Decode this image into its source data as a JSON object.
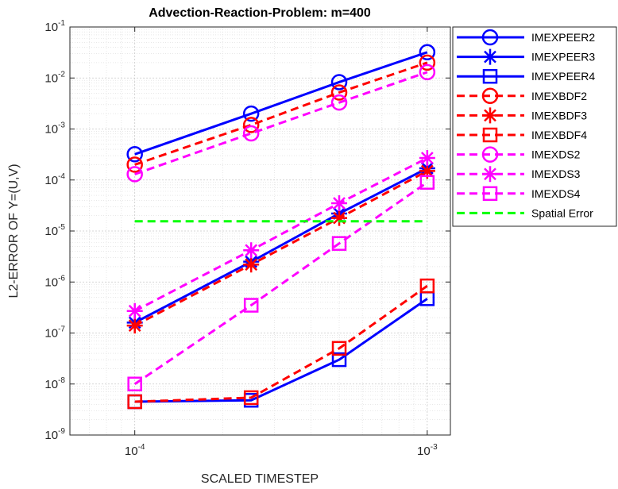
{
  "chart_data": {
    "type": "line",
    "title": "Advection-Reaction-Problem: m=400",
    "xlabel": "SCALED TIMESTEP",
    "ylabel": "L2-ERROR OF Y=(U,V)",
    "xscale": "log",
    "yscale": "log",
    "xlim": [
      6e-05,
      0.0012
    ],
    "ylim": [
      1e-09,
      0.1
    ],
    "grid": "major and minor",
    "legend_position": "outside top-right",
    "x_ticks": [
      {
        "value": 0.0001,
        "base": "10",
        "exp": "-4"
      },
      {
        "value": 0.001,
        "base": "10",
        "exp": "-3"
      }
    ],
    "y_ticks": [
      {
        "value": 1e-09,
        "base": "10",
        "exp": "-9"
      },
      {
        "value": 1e-08,
        "base": "10",
        "exp": "-8"
      },
      {
        "value": 1e-07,
        "base": "10",
        "exp": "-7"
      },
      {
        "value": 1e-06,
        "base": "10",
        "exp": "-6"
      },
      {
        "value": 1e-05,
        "base": "10",
        "exp": "-5"
      },
      {
        "value": 0.0001,
        "base": "10",
        "exp": "-4"
      },
      {
        "value": 0.001,
        "base": "10",
        "exp": "-3"
      },
      {
        "value": 0.01,
        "base": "10",
        "exp": "-2"
      },
      {
        "value": 0.1,
        "base": "10",
        "exp": "-1"
      }
    ],
    "x": [
      0.0001,
      0.00025,
      0.0005,
      0.001
    ],
    "series": [
      {
        "name": "IMEXPEER2",
        "color": "#0000ff",
        "line": "solid",
        "marker": "circle",
        "values": [
          0.00032,
          0.002,
          0.0083,
          0.032
        ]
      },
      {
        "name": "IMEXPEER3",
        "color": "#0000ff",
        "line": "solid",
        "marker": "star",
        "values": [
          1.6e-07,
          2.5e-06,
          2.2e-05,
          0.00017
        ]
      },
      {
        "name": "IMEXPEER4",
        "color": "#0000ff",
        "line": "solid",
        "marker": "square",
        "values": [
          4.5e-09,
          4.8e-09,
          3e-08,
          4.7e-07
        ]
      },
      {
        "name": "IMEXBDF2",
        "color": "#ff0000",
        "line": "dashed",
        "marker": "circle",
        "values": [
          0.0002,
          0.0012,
          0.0052,
          0.02
        ]
      },
      {
        "name": "IMEXBDF3",
        "color": "#ff0000",
        "line": "dashed",
        "marker": "star",
        "values": [
          1.4e-07,
          2.2e-06,
          1.8e-05,
          0.00015
        ]
      },
      {
        "name": "IMEXBDF4",
        "color": "#ff0000",
        "line": "dashed",
        "marker": "square",
        "values": [
          4.5e-09,
          5.4e-09,
          5e-08,
          8.4e-07
        ]
      },
      {
        "name": "IMEXDS2",
        "color": "#ff00ff",
        "line": "dashed",
        "marker": "circle",
        "values": [
          0.00013,
          0.00082,
          0.0033,
          0.013
        ]
      },
      {
        "name": "IMEXDS3",
        "color": "#ff00ff",
        "line": "dashed",
        "marker": "star",
        "values": [
          2.7e-07,
          4.2e-06,
          3.5e-05,
          0.00027
        ]
      },
      {
        "name": "IMEXDS4",
        "color": "#ff00ff",
        "line": "dashed",
        "marker": "square",
        "values": [
          1e-08,
          3.5e-07,
          5.7e-06,
          9e-05
        ]
      },
      {
        "name": "Spatial Error",
        "color": "#00ff00",
        "line": "dashed",
        "marker": "none",
        "constant": 1.55e-05
      }
    ]
  }
}
